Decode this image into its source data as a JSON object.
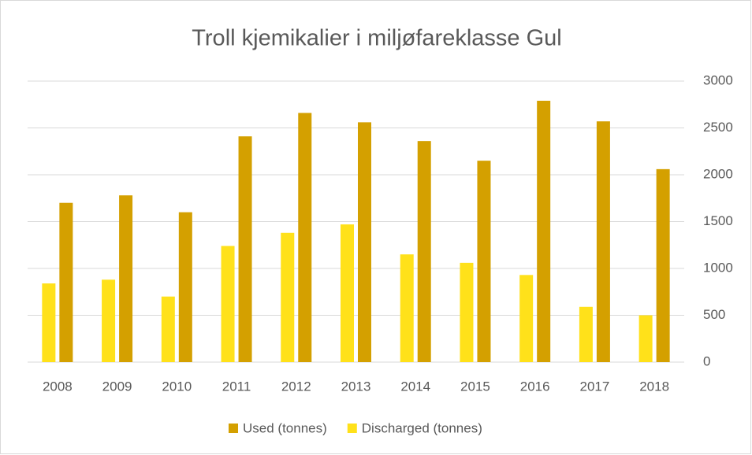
{
  "chart_data": {
    "type": "bar",
    "title": "Troll kjemikalier i miljøfareklasse Gul",
    "categories": [
      "2008",
      "2009",
      "2010",
      "2011",
      "2012",
      "2013",
      "2014",
      "2015",
      "2016",
      "2017",
      "2018"
    ],
    "series": [
      {
        "name": "Used (tonnes)",
        "color": "#d4a000",
        "values": [
          1700,
          1780,
          1600,
          2410,
          2660,
          2560,
          2360,
          2150,
          2790,
          2570,
          2060
        ]
      },
      {
        "name": "Discharged (tonnes)",
        "color": "#ffe11a",
        "values": [
          840,
          880,
          700,
          1240,
          1380,
          1470,
          1150,
          1060,
          930,
          590,
          500
        ]
      }
    ],
    "ylim": [
      0,
      3000
    ],
    "yticks": [
      0,
      500,
      1000,
      1500,
      2000,
      2500,
      3000
    ],
    "grid": true,
    "legend": "bottom"
  }
}
